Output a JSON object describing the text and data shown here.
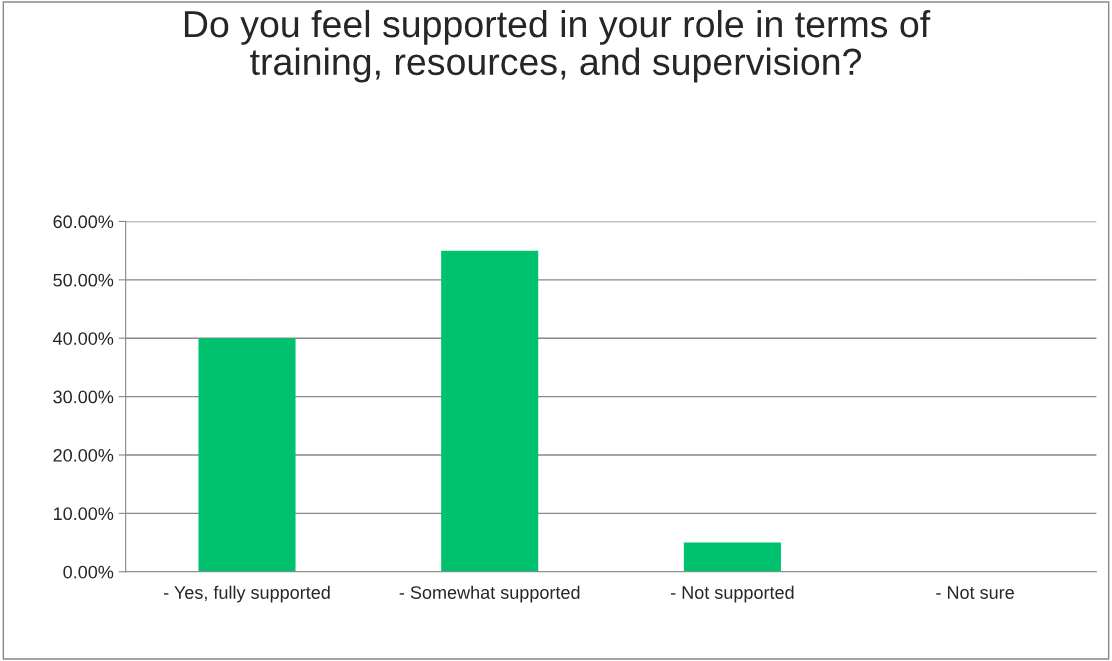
{
  "chart_data": {
    "type": "bar",
    "title": "Do you feel supported in your role in terms of training, resources, and supervision?",
    "categories": [
      "- Yes, fully supported",
      "- Somewhat supported",
      "- Not supported",
      "- Not sure"
    ],
    "values": [
      40,
      55,
      5,
      0
    ],
    "color": "#00c16e",
    "ylim": [
      0,
      60
    ],
    "yticks": [
      {
        "value": 0,
        "label": "0.00%"
      },
      {
        "value": 10,
        "label": "10.00%"
      },
      {
        "value": 20,
        "label": "20.00%"
      },
      {
        "value": 30,
        "label": "30.00%"
      },
      {
        "value": 40,
        "label": "40.00%"
      },
      {
        "value": 50,
        "label": "50.00%"
      },
      {
        "value": 60,
        "label": "60.00%"
      }
    ],
    "grid": "y",
    "legend": false
  }
}
